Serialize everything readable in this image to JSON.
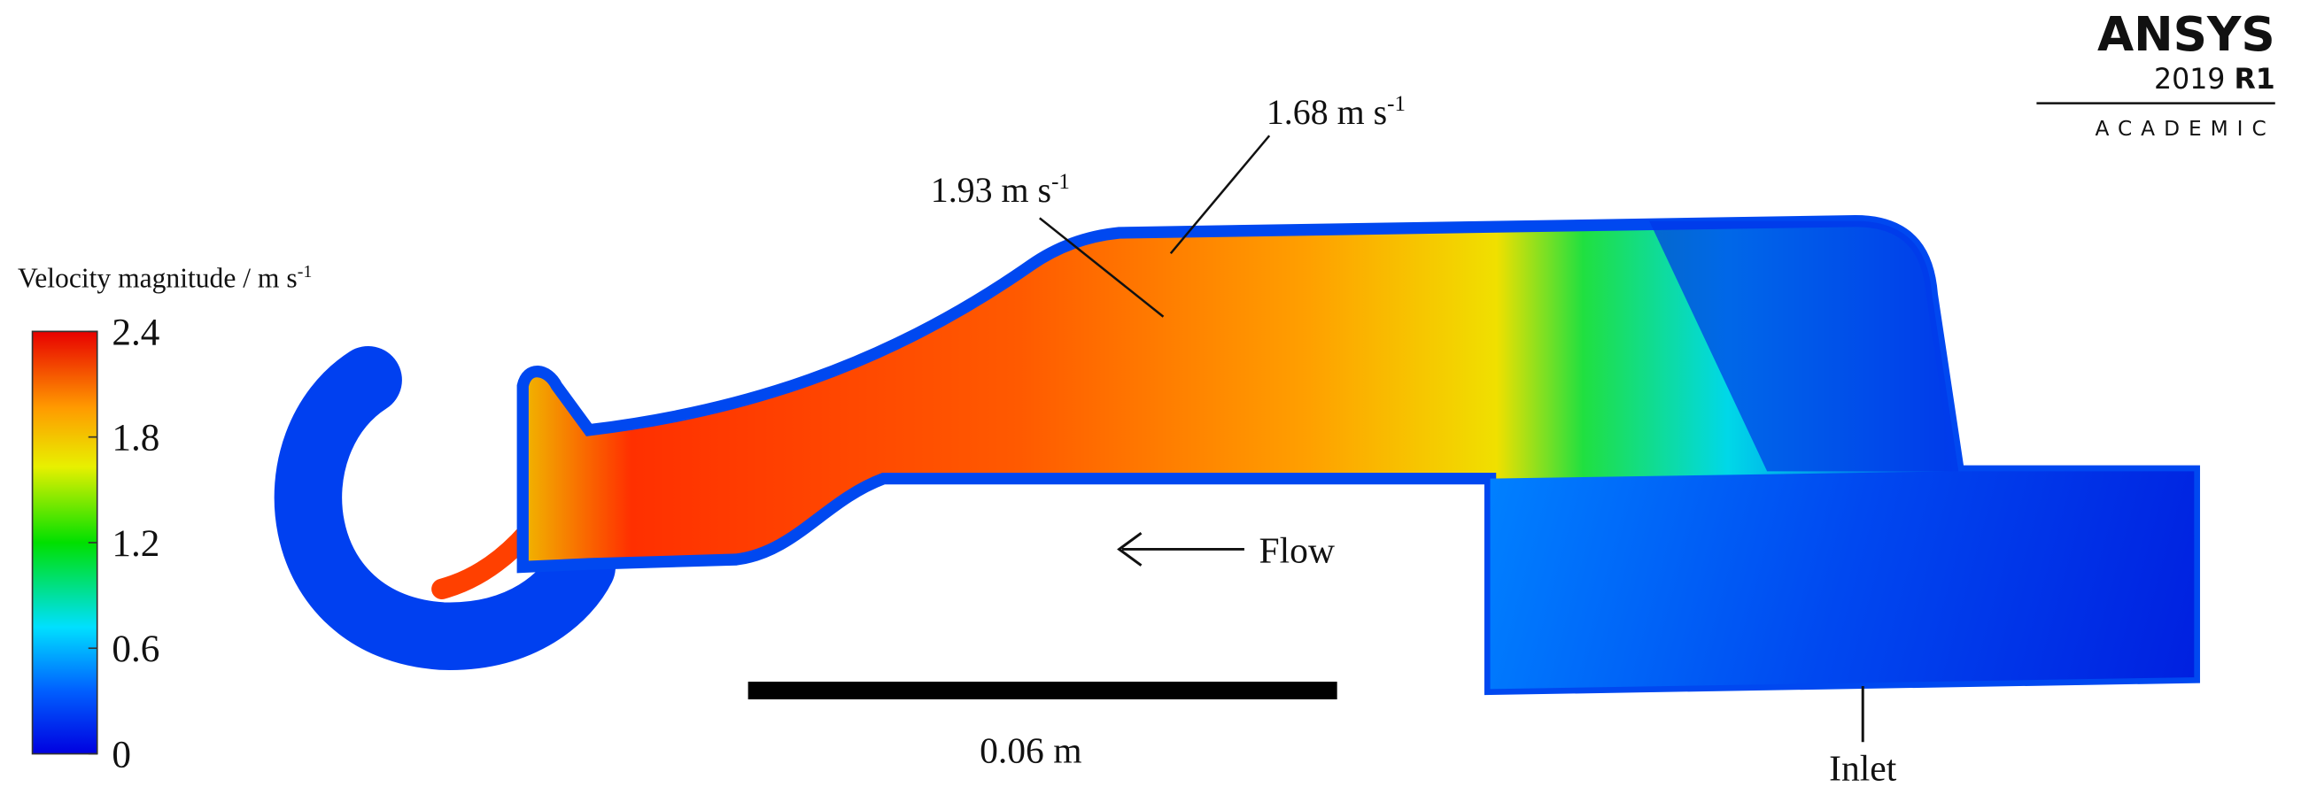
{
  "logo": {
    "name": "ANSYS",
    "version": "2019",
    "release": "R1",
    "edition": "ACADEMIC"
  },
  "colorbar": {
    "title": "Velocity magnitude / m s",
    "title_sup": "-1",
    "range": [
      0,
      2.4
    ],
    "ticks": [
      0,
      0.6,
      1.2,
      1.8,
      2.4
    ]
  },
  "annotations": [
    {
      "text": "1.68 m s",
      "sup": "-1"
    },
    {
      "text": "1.93 m s",
      "sup": "-1"
    }
  ],
  "flow_label": "Flow",
  "scale_bar": "0.06 m",
  "inlet_label": "Inlet"
}
